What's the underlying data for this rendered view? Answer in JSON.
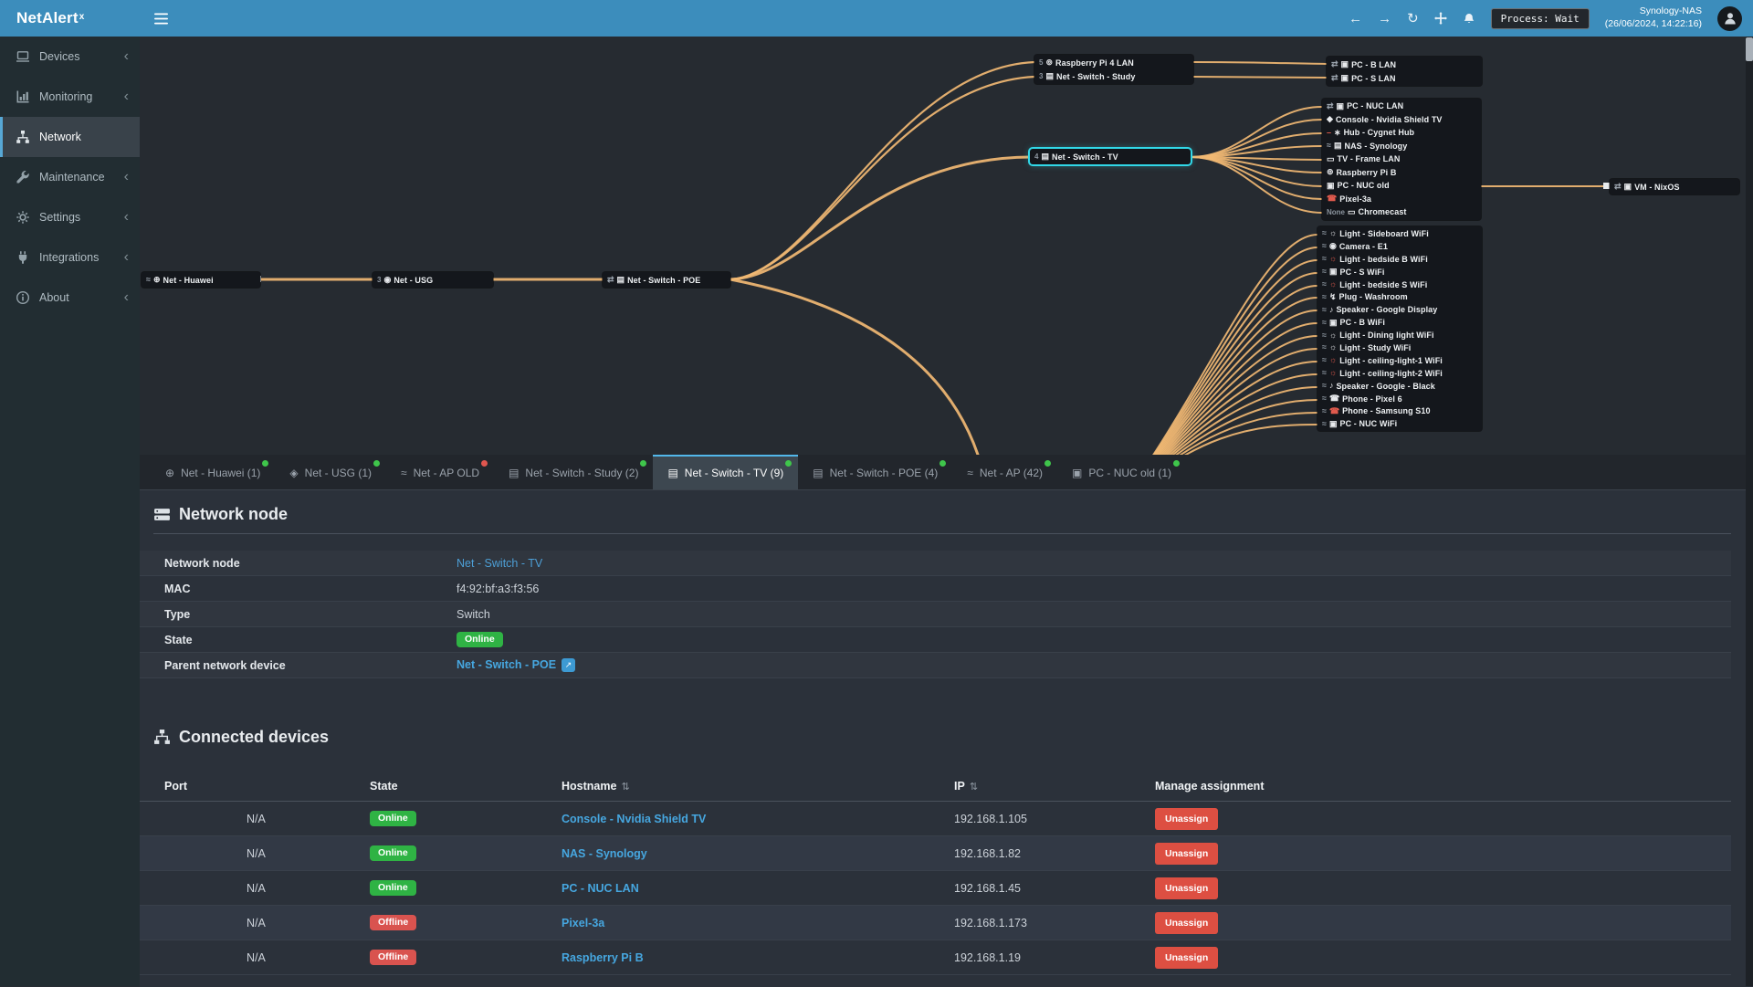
{
  "colors": {
    "accent": "#3c8dbc",
    "online": "#2fb344",
    "offline": "#d9534f",
    "wire": "#f1b873",
    "selection": "#31d8e8",
    "tab_dot_green": "#3fc54b",
    "tab_dot_red": "#e0564f"
  },
  "navbar": {
    "brand": "NetAlert",
    "brand_sup": "x",
    "back_glyph": "←",
    "forward_glyph": "→",
    "refresh_glyph": "↻",
    "process_label": "Process: Wait",
    "host": "Synology-NAS",
    "timestamp": "(26/06/2024, 14:22:16)"
  },
  "sidebar": {
    "chevron": "‹",
    "items": [
      {
        "label": "Devices"
      },
      {
        "label": "Monitoring"
      },
      {
        "label": "Network"
      },
      {
        "label": "Maintenance"
      },
      {
        "label": "Settings"
      },
      {
        "label": "Integrations"
      },
      {
        "label": "About"
      }
    ]
  },
  "diagram": {
    "huawei": [
      {
        "i1": "≈",
        "c1": "#9aa3ad",
        "i2": "⊕",
        "c2": "#e8eaed",
        "label": "Net - Huawei"
      }
    ],
    "usg": [
      {
        "pre": "3",
        "i1": "◉",
        "c1": "#e8eaed",
        "label": "Net - USG"
      }
    ],
    "poe": [
      {
        "i1": "⇄",
        "c1": "#9aa3ad",
        "i2": "▤",
        "c2": "#e8eaed",
        "label": "Net - Switch - POE"
      }
    ],
    "study": [
      {
        "pre": "5",
        "i1": "⊚",
        "c1": "#e8eaed",
        "label": "Raspberry Pi 4 LAN"
      },
      {
        "pre": "3",
        "i1": "▤",
        "c1": "#e8eaed",
        "label": "Net - Switch - Study"
      }
    ],
    "tv": [
      {
        "pre": "4",
        "i1": "▤",
        "c1": "#e8eaed",
        "label": "Net - Switch - TV"
      }
    ],
    "bs": [
      {
        "i1": "⇄",
        "c1": "#9aa3ad",
        "i2": "▣",
        "c2": "#e8eaed",
        "label": "PC - B LAN"
      },
      {
        "i1": "⇄",
        "c1": "#9aa3ad",
        "i2": "▣",
        "c2": "#e8eaed",
        "label": "PC - S LAN"
      }
    ],
    "tv_devices": [
      {
        "i1": "⇄",
        "c1": "#9aa3ad",
        "i2": "▣",
        "c2": "#e8eaed",
        "label": "PC - NUC LAN"
      },
      {
        "i1": "◆",
        "c1": "#e8eaed",
        "label": "Console - Nvidia Shield TV"
      },
      {
        "i1": "–",
        "c1": "#e25b4e",
        "i2": "∗",
        "c2": "#e8eaed",
        "label": "Hub - Cygnet Hub"
      },
      {
        "i1": "≈",
        "c1": "#9aa3ad",
        "i2": "▤",
        "c2": "#e8eaed",
        "label": "NAS - Synology"
      },
      {
        "i1": "▭",
        "c1": "#e8eaed",
        "label": "TV - Frame LAN"
      },
      {
        "i1": "⊚",
        "c1": "#e8eaed",
        "label": "Raspberry Pi B"
      },
      {
        "i1": "▣",
        "c1": "#e8eaed",
        "label": "PC - NUC old"
      },
      {
        "i1": "☎",
        "c1": "#e25b4e",
        "label": "Pixel-3a"
      },
      {
        "pre": "None",
        "i1": "▭",
        "c1": "#e8eaed",
        "label": "Chromecast"
      }
    ],
    "vm": [
      {
        "i1": "⇄",
        "c1": "#9aa3ad",
        "i2": "▣",
        "c2": "#e8eaed",
        "label": "VM - NixOS"
      }
    ],
    "wifi_devices": [
      {
        "i1": "≈",
        "c1": "#8b949e",
        "i2": "☼",
        "c2": "#e8eaed",
        "label": "Light - Sideboard WiFi"
      },
      {
        "i1": "≈",
        "c1": "#8b949e",
        "i2": "◉",
        "c2": "#e8eaed",
        "label": "Camera - E1"
      },
      {
        "i1": "≈",
        "c1": "#8b949e",
        "i2": "☼",
        "c2": "#e25b4e",
        "label": "Light - bedside B WiFi"
      },
      {
        "i1": "≈",
        "c1": "#8b949e",
        "i2": "▣",
        "c2": "#e8eaed",
        "label": "PC - S WiFi"
      },
      {
        "i1": "≈",
        "c1": "#8b949e",
        "i2": "☼",
        "c2": "#e25b4e",
        "label": "Light - bedside S WiFi"
      },
      {
        "i1": "≈",
        "c1": "#8b949e",
        "i2": "↯",
        "c2": "#e8eaed",
        "label": "Plug - Washroom"
      },
      {
        "i1": "≈",
        "c1": "#8b949e",
        "i2": "♪",
        "c2": "#e8eaed",
        "label": "Speaker - Google Display"
      },
      {
        "i1": "≈",
        "c1": "#8b949e",
        "i2": "▣",
        "c2": "#e8eaed",
        "label": "PC - B WiFi"
      },
      {
        "i1": "≈",
        "c1": "#8b949e",
        "i2": "☼",
        "c2": "#e8eaed",
        "label": "Light - Dining light WiFi"
      },
      {
        "i1": "≈",
        "c1": "#8b949e",
        "i2": "☼",
        "c2": "#e8eaed",
        "label": "Light - Study WiFi"
      },
      {
        "i1": "≈",
        "c1": "#8b949e",
        "i2": "☼",
        "c2": "#e25b4e",
        "label": "Light - ceiling-light-1 WiFi"
      },
      {
        "i1": "≈",
        "c1": "#8b949e",
        "i2": "☼",
        "c2": "#e25b4e",
        "label": "Light - ceiling-light-2 WiFi"
      },
      {
        "i1": "≈",
        "c1": "#8b949e",
        "i2": "♪",
        "c2": "#e8eaed",
        "label": "Speaker - Google - Black"
      },
      {
        "i1": "≈",
        "c1": "#8b949e",
        "i2": "☎",
        "c2": "#e8eaed",
        "label": "Phone - Pixel 6"
      },
      {
        "i1": "≈",
        "c1": "#8b949e",
        "i2": "☎",
        "c2": "#e25b4e",
        "label": "Phone - Samsung S10"
      },
      {
        "i1": "≈",
        "c1": "#8b949e",
        "i2": "▣",
        "c2": "#e8eaed",
        "label": "PC - NUC WiFi"
      }
    ]
  },
  "tabs": [
    {
      "label": "Net - Huawei (1)",
      "icon": "⊕",
      "dot": "green"
    },
    {
      "label": "Net - USG (1)",
      "icon": "◈",
      "dot": "green"
    },
    {
      "label": "Net - AP OLD",
      "icon": "≈",
      "dot": "red"
    },
    {
      "label": "Net - Switch - Study (2)",
      "icon": "▤",
      "dot": "green"
    },
    {
      "label": "Net - Switch - TV (9)",
      "icon": "▤",
      "dot": "green",
      "cls": "active"
    },
    {
      "label": "Net - Switch - POE (4)",
      "icon": "▤",
      "dot": "green"
    },
    {
      "label": "Net - AP (42)",
      "icon": "≈",
      "dot": "green"
    },
    {
      "label": "PC - NUC old (1)",
      "icon": "▣",
      "dot": "green"
    }
  ],
  "node_info": {
    "title": "Network node",
    "network_node_label": "Network node",
    "network_node_value": "Net - Switch - TV",
    "mac_label": "MAC",
    "mac_value": "f4:92:bf:a3:f3:56",
    "type_label": "Type",
    "type_value": "Switch",
    "state_label": "State",
    "state_value": "Online",
    "parent_label": "Parent network device",
    "parent_value": "Net - Switch - POE",
    "parent_ext_glyph": "↗"
  },
  "connected": {
    "title": "Connected devices",
    "sort_glyph": "⇅",
    "headers": {
      "port": "Port",
      "state": "State",
      "hostname": "Hostname",
      "ip": "IP",
      "manage": "Manage assignment"
    },
    "rows": [
      {
        "port": "N/A",
        "state": "Online",
        "hostname": "Console - Nvidia Shield TV",
        "ip": "192.168.1.105",
        "action": "Unassign"
      },
      {
        "port": "N/A",
        "state": "Online",
        "hostname": "NAS - Synology",
        "ip": "192.168.1.82",
        "action": "Unassign"
      },
      {
        "port": "N/A",
        "state": "Online",
        "hostname": "PC - NUC LAN",
        "ip": "192.168.1.45",
        "action": "Unassign"
      },
      {
        "port": "N/A",
        "state": "Offline",
        "hostname": "Pixel-3a",
        "ip": "192.168.1.173",
        "action": "Unassign"
      },
      {
        "port": "N/A",
        "state": "Offline",
        "hostname": "Raspberry Pi B",
        "ip": "192.168.1.19",
        "action": "Unassign"
      }
    ]
  }
}
